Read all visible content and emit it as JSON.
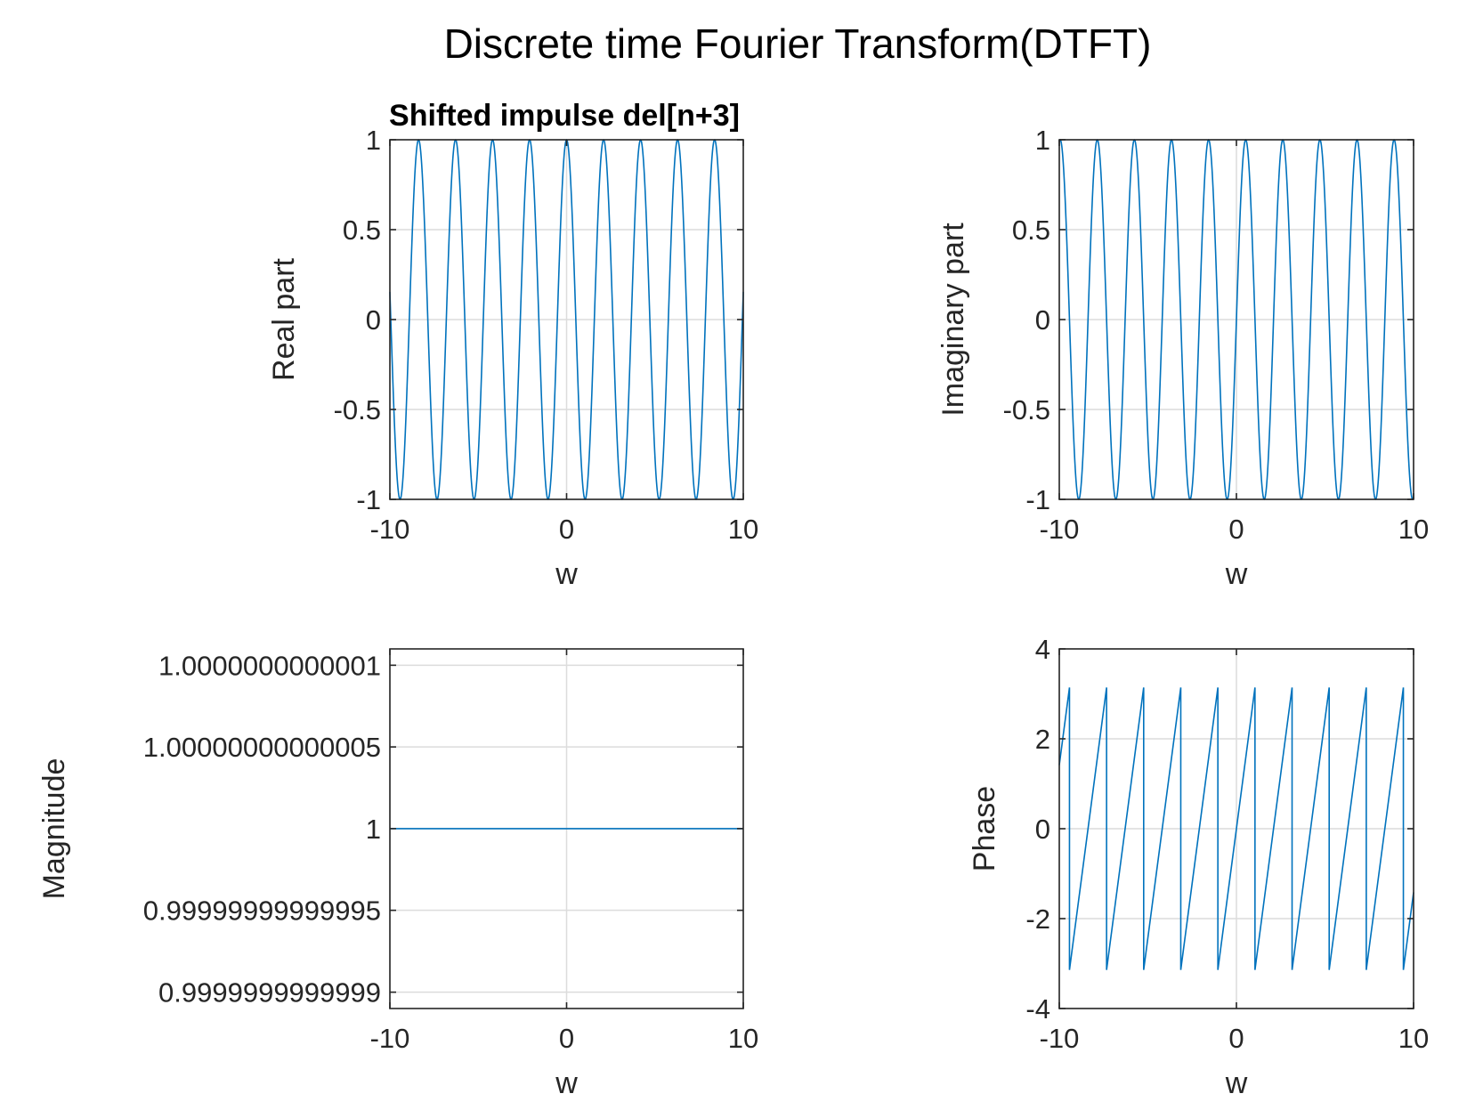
{
  "figure": {
    "title": "Discrete time Fourier Transform(DTFT)"
  },
  "chart_data": [
    {
      "type": "line",
      "title": "Shifted impulse del[n+3]",
      "xlabel": "w",
      "ylabel": "Real part",
      "xlim": [
        -10,
        10
      ],
      "ylim": [
        -1,
        1
      ],
      "xticks": [
        -10,
        0,
        10
      ],
      "xticklabels": [
        "-10",
        "0",
        "10"
      ],
      "yticks": [
        -1,
        -0.5,
        0,
        0.5,
        1
      ],
      "yticklabels": [
        "-1",
        "-0.5",
        "0",
        "0.5",
        "1"
      ],
      "grid": true,
      "color": "#0072bd",
      "series": [
        {
          "formula": "cos(3w)",
          "x": [
            -10,
            -9.5,
            -9,
            -8.5,
            -8,
            -7.5,
            -7,
            -6.5,
            -6,
            -5.5,
            -5,
            -4.5,
            -4,
            -3.5,
            -3,
            -2.5,
            -2,
            -1.5,
            -1,
            -0.5,
            0,
            0.5,
            1,
            1.5,
            2,
            2.5,
            3,
            3.5,
            4,
            4.5,
            5,
            5.5,
            6,
            6.5,
            7,
            7.5,
            8,
            8.5,
            9,
            9.5,
            10
          ],
          "values": [
            0.154,
            -0.972,
            -0.911,
            0.987,
            0.424,
            -0.626,
            -0.548,
            0.912,
            0.66,
            -0.636,
            -0.76,
            0.591,
            0.844,
            -0.105,
            -0.911,
            -0.347,
            0.96,
            0.211,
            -0.99,
            0.071,
            1,
            0.071,
            -0.99,
            0.211,
            0.96,
            -0.347,
            -0.911,
            -0.105,
            0.844,
            0.591,
            -0.76,
            -0.636,
            0.66,
            0.912,
            -0.548,
            -0.626,
            0.424,
            0.987,
            -0.911,
            -0.972,
            0.154
          ]
        }
      ]
    },
    {
      "type": "line",
      "title": "",
      "xlabel": "w",
      "ylabel": "Imaginary part",
      "xlim": [
        -10,
        10
      ],
      "ylim": [
        -1,
        1
      ],
      "xticks": [
        -10,
        0,
        10
      ],
      "xticklabels": [
        "-10",
        "0",
        "10"
      ],
      "yticks": [
        -1,
        -0.5,
        0,
        0.5,
        1
      ],
      "yticklabels": [
        "-1",
        "-0.5",
        "0",
        "0.5",
        "1"
      ],
      "grid": true,
      "color": "#0072bd",
      "series": [
        {
          "formula": "sin(3w)",
          "x": [
            -10,
            -9.5,
            -9,
            -8.5,
            -8,
            -7.5,
            -7,
            -6.5,
            -6,
            -5.5,
            -5,
            -4.5,
            -4,
            -3.5,
            -3,
            -2.5,
            -2,
            -1.5,
            -1,
            -0.5,
            0,
            0.5,
            1,
            1.5,
            2,
            2.5,
            3,
            3.5,
            4,
            4.5,
            5,
            5.5,
            6,
            6.5,
            7,
            7.5,
            8,
            8.5,
            9,
            9.5,
            10
          ],
          "values": [
            0.988,
            -0.236,
            0.412,
            0.159,
            0.906,
            -0.78,
            -0.837,
            0.41,
            -0.751,
            -0.772,
            0.65,
            -0.807,
            0.537,
            0.995,
            -0.412,
            0.938,
            0.279,
            0.978,
            0.141,
            0.997,
            0,
            -0.997,
            -0.141,
            -0.978,
            -0.279,
            -0.938,
            0.412,
            -0.995,
            -0.537,
            0.807,
            -0.65,
            0.772,
            0.751,
            -0.41,
            0.837,
            0.78,
            -0.906,
            -0.159,
            -0.412,
            0.236,
            -0.988
          ]
        }
      ]
    },
    {
      "type": "line",
      "title": "",
      "xlabel": "w",
      "ylabel": "Magnitude",
      "xlim": [
        -10,
        10
      ],
      "ylim": [
        0.99999999999989,
        1.00000000000011
      ],
      "xticks": [
        -10,
        0,
        10
      ],
      "xticklabels": [
        "-10",
        "0",
        "10"
      ],
      "yticks": [
        0.9999999999999,
        0.99999999999995,
        1,
        1.00000000000005,
        1.0000000000001
      ],
      "yticklabels": [
        "0.9999999999999",
        "0.99999999999995",
        "1",
        "1.00000000000005",
        "1.0000000000001"
      ],
      "grid": true,
      "color": "#0072bd",
      "series": [
        {
          "formula": "1",
          "x": [
            -10,
            10
          ],
          "values": [
            1,
            1
          ]
        }
      ]
    },
    {
      "type": "line",
      "title": "",
      "xlabel": "w",
      "ylabel": "Phase",
      "xlim": [
        -10,
        10
      ],
      "ylim": [
        -4,
        4
      ],
      "xticks": [
        -10,
        0,
        10
      ],
      "xticklabels": [
        "-10",
        "0",
        "10"
      ],
      "yticks": [
        -4,
        -2,
        0,
        2,
        4
      ],
      "yticklabels": [
        "-4",
        "-2",
        "0",
        "2",
        "4"
      ],
      "grid": true,
      "color": "#0072bd",
      "series": [
        {
          "formula": "angle(exp(j*3w)), wrapped to (-pi, pi]",
          "x": [
            -10,
            -9.4248,
            -9.4248,
            -7.3304,
            -7.3304,
            -5.236,
            -5.236,
            -3.1416,
            -3.1416,
            -1.0472,
            -1.0472,
            1.0472,
            1.0472,
            3.1416,
            3.1416,
            5.236,
            5.236,
            7.3304,
            7.3304,
            9.4248,
            9.4248,
            10
          ],
          "values": [
            1.416,
            3.1416,
            -3.1416,
            3.1416,
            -3.1416,
            3.1416,
            -3.1416,
            3.1416,
            -3.1416,
            3.1416,
            -3.1416,
            3.1416,
            -3.1416,
            3.1416,
            -3.1416,
            3.1416,
            -3.1416,
            3.1416,
            -3.1416,
            3.1416,
            -3.1416,
            -1.416
          ]
        }
      ]
    }
  ]
}
